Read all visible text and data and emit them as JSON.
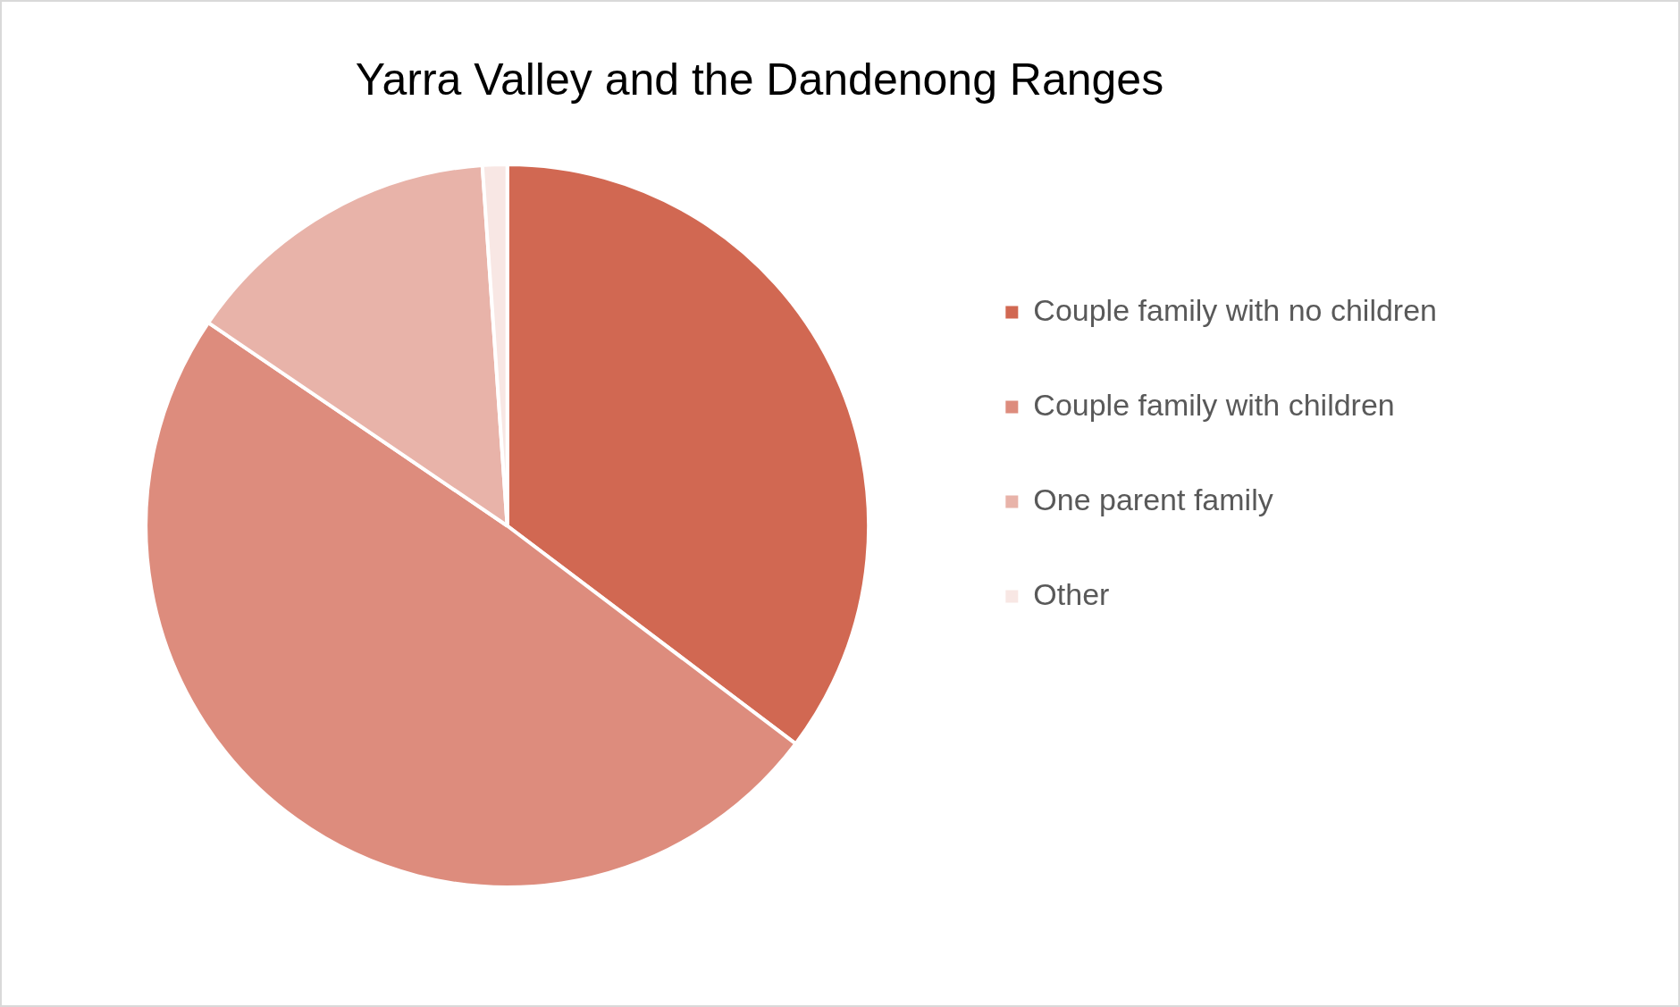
{
  "chart_data": {
    "type": "pie",
    "title": "Yarra Valley and the Dandenong Ranges",
    "categories": [
      "Couple family with no children",
      "Couple family with children",
      "One parent family",
      "Other"
    ],
    "values": [
      35.3,
      49.2,
      14.4,
      1.1
    ],
    "colors": [
      "#d16852",
      "#dd8c7d",
      "#e8b3a9",
      "#f8e7e4"
    ],
    "legend": "right"
  }
}
